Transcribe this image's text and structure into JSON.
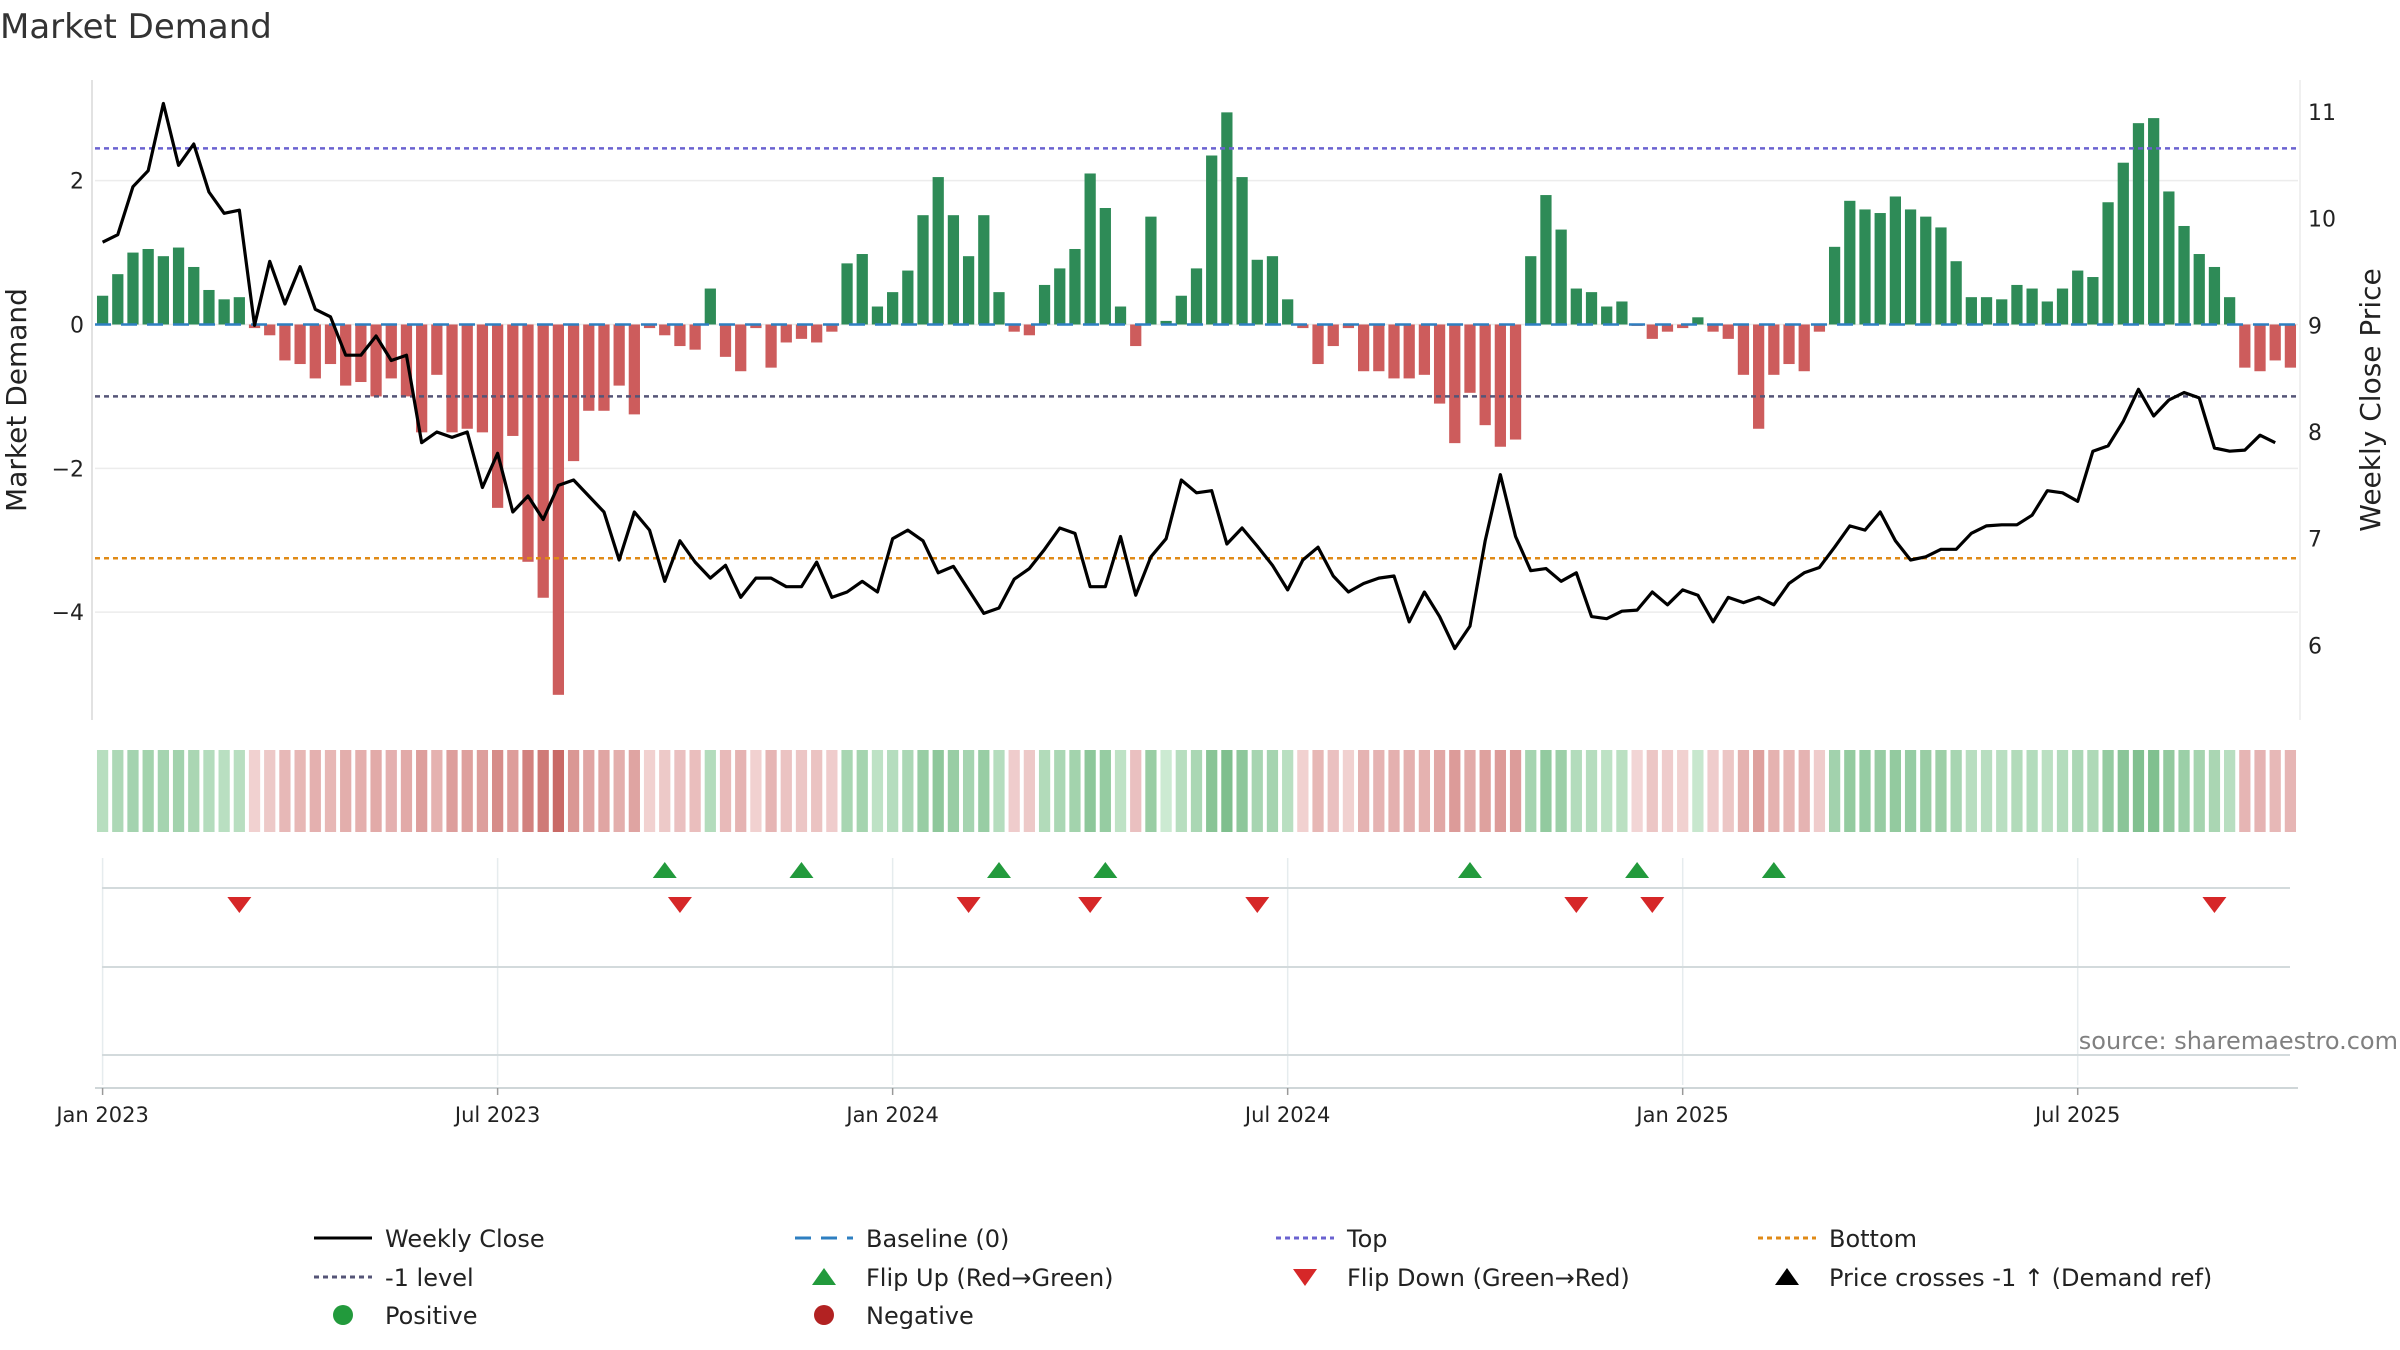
{
  "chart_data": {
    "type": "bar+line",
    "title": "Market Demand",
    "ylabel_left": "Market Demand",
    "ylabel_right": "Weekly Close Price",
    "source": "source: sharemaestro.com",
    "ylim_left": [
      -5.5,
      3.4
    ],
    "ylim_right": [
      5.3,
      11.3
    ],
    "yticks_left": [
      {
        "v": 2,
        "label": "2"
      },
      {
        "v": 0,
        "label": "0"
      },
      {
        "v": -2,
        "label": "−2"
      },
      {
        "v": -4,
        "label": "−4"
      }
    ],
    "yticks_right": [
      {
        "v": 11,
        "label": "11"
      },
      {
        "v": 10,
        "label": "10"
      },
      {
        "v": 9,
        "label": "9"
      },
      {
        "v": 8,
        "label": "8"
      },
      {
        "v": 7,
        "label": "7"
      },
      {
        "v": 6,
        "label": "6"
      }
    ],
    "xticks": [
      {
        "week": 1,
        "label": "Jan 2023"
      },
      {
        "week": 27,
        "label": "Jul 2023"
      },
      {
        "week": 53,
        "label": "Jan 2024"
      },
      {
        "week": 79,
        "label": "Jul 2024"
      },
      {
        "week": 105,
        "label": "Jan 2025"
      },
      {
        "week": 131,
        "label": "Jul 2025"
      }
    ],
    "reference_lines": {
      "top": 2.45,
      "minus_one": -1.0,
      "bottom": -3.25,
      "baseline": 0
    },
    "demand": [
      0.4,
      0.7,
      1.0,
      1.05,
      0.95,
      1.07,
      0.8,
      0.48,
      0.35,
      0.38,
      -0.05,
      -0.15,
      -0.5,
      -0.55,
      -0.75,
      -0.55,
      -0.85,
      -0.8,
      -1.0,
      -0.75,
      -1.0,
      -1.5,
      -0.7,
      -1.5,
      -1.45,
      -1.5,
      -2.55,
      -1.55,
      -3.3,
      -3.8,
      -5.15,
      -1.9,
      -1.2,
      -1.2,
      -0.85,
      -1.25,
      -0.05,
      -0.15,
      -0.3,
      -0.35,
      0.5,
      -0.45,
      -0.65,
      -0.05,
      -0.6,
      -0.25,
      -0.2,
      -0.25,
      -0.1,
      0.85,
      0.98,
      0.25,
      0.45,
      0.75,
      1.52,
      2.05,
      1.52,
      0.95,
      1.52,
      0.45,
      -0.1,
      -0.15,
      0.55,
      0.78,
      1.05,
      2.1,
      1.62,
      0.25,
      -0.3,
      1.5,
      0.05,
      0.4,
      0.78,
      2.35,
      2.95,
      2.05,
      0.9,
      0.95,
      0.35,
      -0.05,
      -0.55,
      -0.3,
      -0.05,
      -0.65,
      -0.65,
      -0.75,
      -0.75,
      -0.7,
      -1.1,
      -1.65,
      -0.95,
      -1.4,
      -1.7,
      -1.6,
      0.95,
      1.8,
      1.32,
      0.5,
      0.45,
      0.25,
      0.32,
      -0.02,
      -0.2,
      -0.1,
      -0.05,
      0.1,
      -0.1,
      -0.2,
      -0.7,
      -1.45,
      -0.7,
      -0.55,
      -0.65,
      -0.1,
      1.08,
      1.72,
      1.6,
      1.55,
      1.78,
      1.6,
      1.5,
      1.35,
      0.88,
      0.38,
      0.38,
      0.35,
      0.55,
      0.5,
      0.32,
      0.5,
      0.75,
      0.66,
      1.7,
      2.25,
      2.8,
      2.87,
      1.85,
      1.37,
      0.98,
      0.8,
      0.38,
      -0.6,
      -0.65,
      -0.5,
      -0.6
    ],
    "price": [
      9.78,
      9.85,
      10.3,
      10.45,
      11.08,
      10.5,
      10.7,
      10.25,
      10.05,
      10.08,
      9.0,
      9.6,
      9.2,
      9.55,
      9.15,
      9.08,
      8.72,
      8.72,
      8.9,
      8.67,
      8.72,
      7.9,
      8.0,
      7.95,
      8.0,
      7.48,
      7.8,
      7.25,
      7.4,
      7.18,
      7.5,
      7.55,
      7.4,
      7.25,
      6.8,
      7.25,
      7.08,
      6.6,
      6.98,
      6.78,
      6.63,
      6.75,
      6.45,
      6.63,
      6.63,
      6.55,
      6.55,
      6.78,
      6.45,
      6.5,
      6.6,
      6.5,
      7.0,
      7.08,
      6.98,
      6.68,
      6.74,
      6.52,
      6.3,
      6.35,
      6.62,
      6.72,
      6.9,
      7.1,
      7.05,
      6.55,
      6.55,
      7.02,
      6.47,
      6.83,
      7.0,
      7.55,
      7.43,
      7.45,
      6.95,
      7.1,
      6.93,
      6.75,
      6.52,
      6.8,
      6.92,
      6.65,
      6.5,
      6.58,
      6.63,
      6.65,
      6.22,
      6.5,
      6.27,
      5.97,
      6.18,
      6.98,
      7.6,
      7.02,
      6.7,
      6.72,
      6.6,
      6.68,
      6.27,
      6.25,
      6.32,
      6.33,
      6.5,
      6.38,
      6.52,
      6.47,
      6.22,
      6.45,
      6.4,
      6.45,
      6.38,
      6.58,
      6.68,
      6.73,
      6.92,
      7.12,
      7.08,
      7.25,
      6.98,
      6.8,
      6.83,
      6.9,
      6.9,
      7.05,
      7.12,
      7.13,
      7.13,
      7.22,
      7.45,
      7.43,
      7.35,
      7.82,
      7.87,
      8.1,
      8.4,
      8.15,
      8.3,
      8.37,
      8.32,
      7.85,
      7.82,
      7.83,
      7.97,
      7.9
    ],
    "flip_up_weeks": [
      38,
      47,
      60,
      67,
      91,
      102,
      111
    ],
    "flip_down_weeks": [
      10,
      39,
      58,
      66,
      77,
      98,
      103,
      140
    ],
    "legend": [
      {
        "label": "Weekly Close",
        "kind": "line",
        "color": "#000000"
      },
      {
        "label": "Baseline (0)",
        "kind": "dash",
        "color": "#2e7fc1"
      },
      {
        "label": "Top",
        "kind": "dot",
        "color": "#6a62d0"
      },
      {
        "label": "Bottom",
        "kind": "dot",
        "color": "#e08a16"
      },
      {
        "label": "-1 level",
        "kind": "dot",
        "color": "#555577"
      },
      {
        "label": "Flip Up (Red→Green)",
        "kind": "triangle-up",
        "color": "#229a3c"
      },
      {
        "label": "Flip Down (Green→Red)",
        "kind": "triangle-down",
        "color": "#d62728"
      },
      {
        "label": "Price crosses -1 ↑ (Demand ref)",
        "kind": "triangle-up",
        "color": "#000000"
      },
      {
        "label": "Positive",
        "kind": "circle",
        "color": "#229a3c"
      },
      {
        "label": "Negative",
        "kind": "circle",
        "color": "#b22222"
      }
    ],
    "colors": {
      "positive_bar": "#2e8b57",
      "negative_bar": "#cd5c5c",
      "price_line": "#000000",
      "baseline": "#2e7fc1",
      "top_line": "#6a62d0",
      "bottom_line": "#e08a16",
      "minus_one_line": "#555577"
    }
  }
}
